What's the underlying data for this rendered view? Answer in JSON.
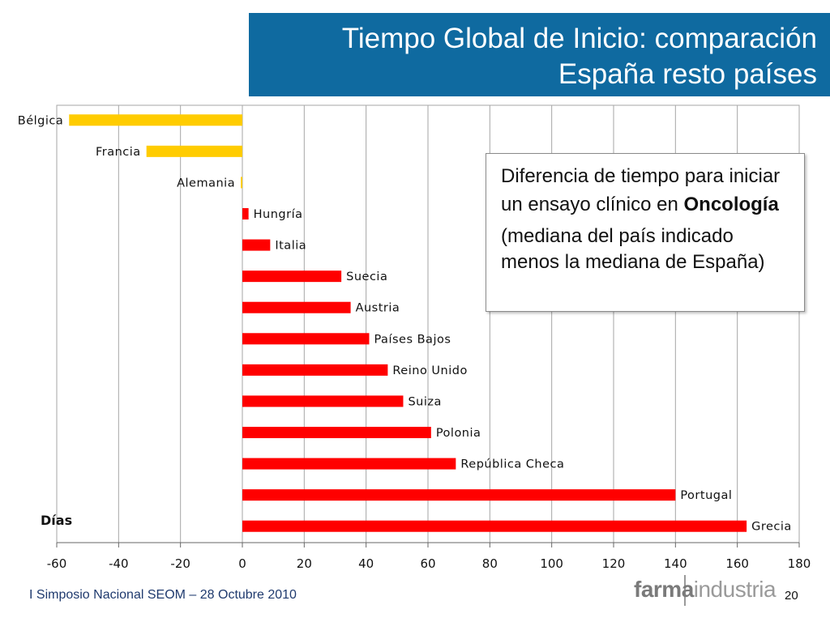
{
  "title": {
    "line1": "Tiempo Global de Inicio: comparación",
    "line2": "España resto países"
  },
  "callout": {
    "text_before": "Diferencia de tiempo para iniciar un ensayo clínico en",
    "bold_word": "Oncología",
    "note": "(mediana del país indicado menos la mediana de España)"
  },
  "footer": {
    "left_text": "I Simposio Nacional SEOM – 28 Octubre 2010",
    "logo_part1": "farma",
    "logo_part2": "industria",
    "page_number": "20"
  },
  "colors": {
    "title_bg": "#0f6aa0",
    "negative_bar": "#ffcc00",
    "positive_bar": "#ff0000",
    "grid": "#a6a6a6"
  },
  "chart_data": {
    "type": "bar",
    "orientation": "horizontal",
    "title": "",
    "xlabel": "Días",
    "ylabel": "",
    "xlim": [
      -60,
      180
    ],
    "xticks": [
      -60,
      -40,
      -20,
      0,
      20,
      40,
      60,
      80,
      100,
      120,
      140,
      160,
      180
    ],
    "grid": true,
    "categories": [
      "Bélgica",
      "Francia",
      "Alemania",
      "Hungría",
      "Italia",
      "Suecia",
      "Austria",
      "Países Bajos",
      "Reino Unido",
      "Suiza",
      "Polonia",
      "República Checa",
      "Portugal",
      "Grecia"
    ],
    "values": [
      -56,
      -31,
      -0.5,
      2,
      9,
      32,
      35,
      41,
      47,
      52,
      61,
      69,
      140,
      163
    ]
  }
}
